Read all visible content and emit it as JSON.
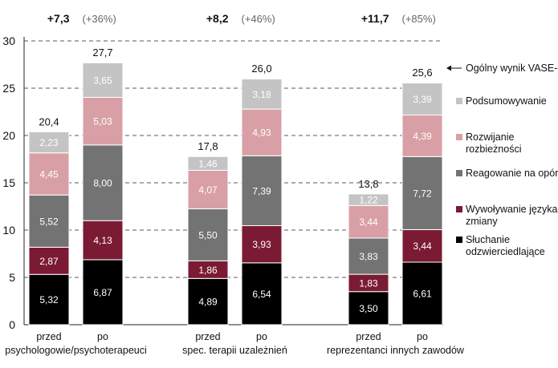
{
  "chart_data": {
    "type": "bar",
    "stacked": true,
    "ylim": [
      0,
      30
    ],
    "yticks": [
      0,
      5,
      10,
      15,
      20,
      25,
      30
    ],
    "grid": "dashed horizontal",
    "legend_position": "right",
    "categories": [
      "przed",
      "po",
      "przed",
      "po",
      "przed",
      "po"
    ],
    "groups": [
      {
        "label": "psychologowie/psychoterapeuci",
        "change": "+7,3",
        "change_pct": "(+36%)"
      },
      {
        "label": "spec. terapii uzależnień",
        "change": "+8,2",
        "change_pct": "(+46%)"
      },
      {
        "label": "reprezentanci innych zawodów",
        "change": "+11,7",
        "change_pct": "(+85%)"
      }
    ],
    "series": [
      {
        "name": "Słuchanie odzwierciedlające",
        "color": "#000000",
        "label_color": "#ffffff",
        "values": [
          5.32,
          6.87,
          4.89,
          6.54,
          3.5,
          6.61
        ],
        "labels": [
          "5,32",
          "6,87",
          "4,89",
          "6,54",
          "3,50",
          "6,61"
        ]
      },
      {
        "name": "Wywoływanie języka zmiany",
        "color": "#7b1a33",
        "label_color": "#ffffff",
        "values": [
          2.87,
          4.13,
          1.86,
          3.93,
          1.83,
          3.44
        ],
        "labels": [
          "2,87",
          "4,13",
          "1,86",
          "3,93",
          "1,83",
          "3,44"
        ]
      },
      {
        "name": "Reagowanie na opór",
        "color": "#737373",
        "label_color": "#ffffff",
        "values": [
          5.52,
          8.0,
          5.5,
          7.39,
          3.83,
          7.72
        ],
        "labels": [
          "5,52",
          "8,00",
          "5,50",
          "7,39",
          "3,83",
          "7,72"
        ]
      },
      {
        "name": "Rozwijanie rozbieżności",
        "color": "#d8a0a6",
        "label_color": "#ffffff",
        "values": [
          4.45,
          5.03,
          4.07,
          4.93,
          3.44,
          4.39
        ],
        "labels": [
          "4,45",
          "5,03",
          "4,07",
          "4,93",
          "3,44",
          "4,39"
        ]
      },
      {
        "name": "Podsumowywanie",
        "color": "#c4c4c4",
        "label_color": "#ffffff",
        "values": [
          2.23,
          3.65,
          1.46,
          3.18,
          1.22,
          3.39
        ],
        "labels": [
          "2,23",
          "3,65",
          "1,46",
          "3,18",
          "1,22",
          "3,39"
        ]
      }
    ],
    "totals": [
      20.4,
      27.7,
      17.8,
      26.0,
      13.8,
      25.6
    ],
    "total_labels": [
      "20,4",
      "27,7",
      "17,8",
      "26,0",
      "13,8",
      "25,6"
    ],
    "total_legend": "Ogólny wynik VASE-R"
  }
}
